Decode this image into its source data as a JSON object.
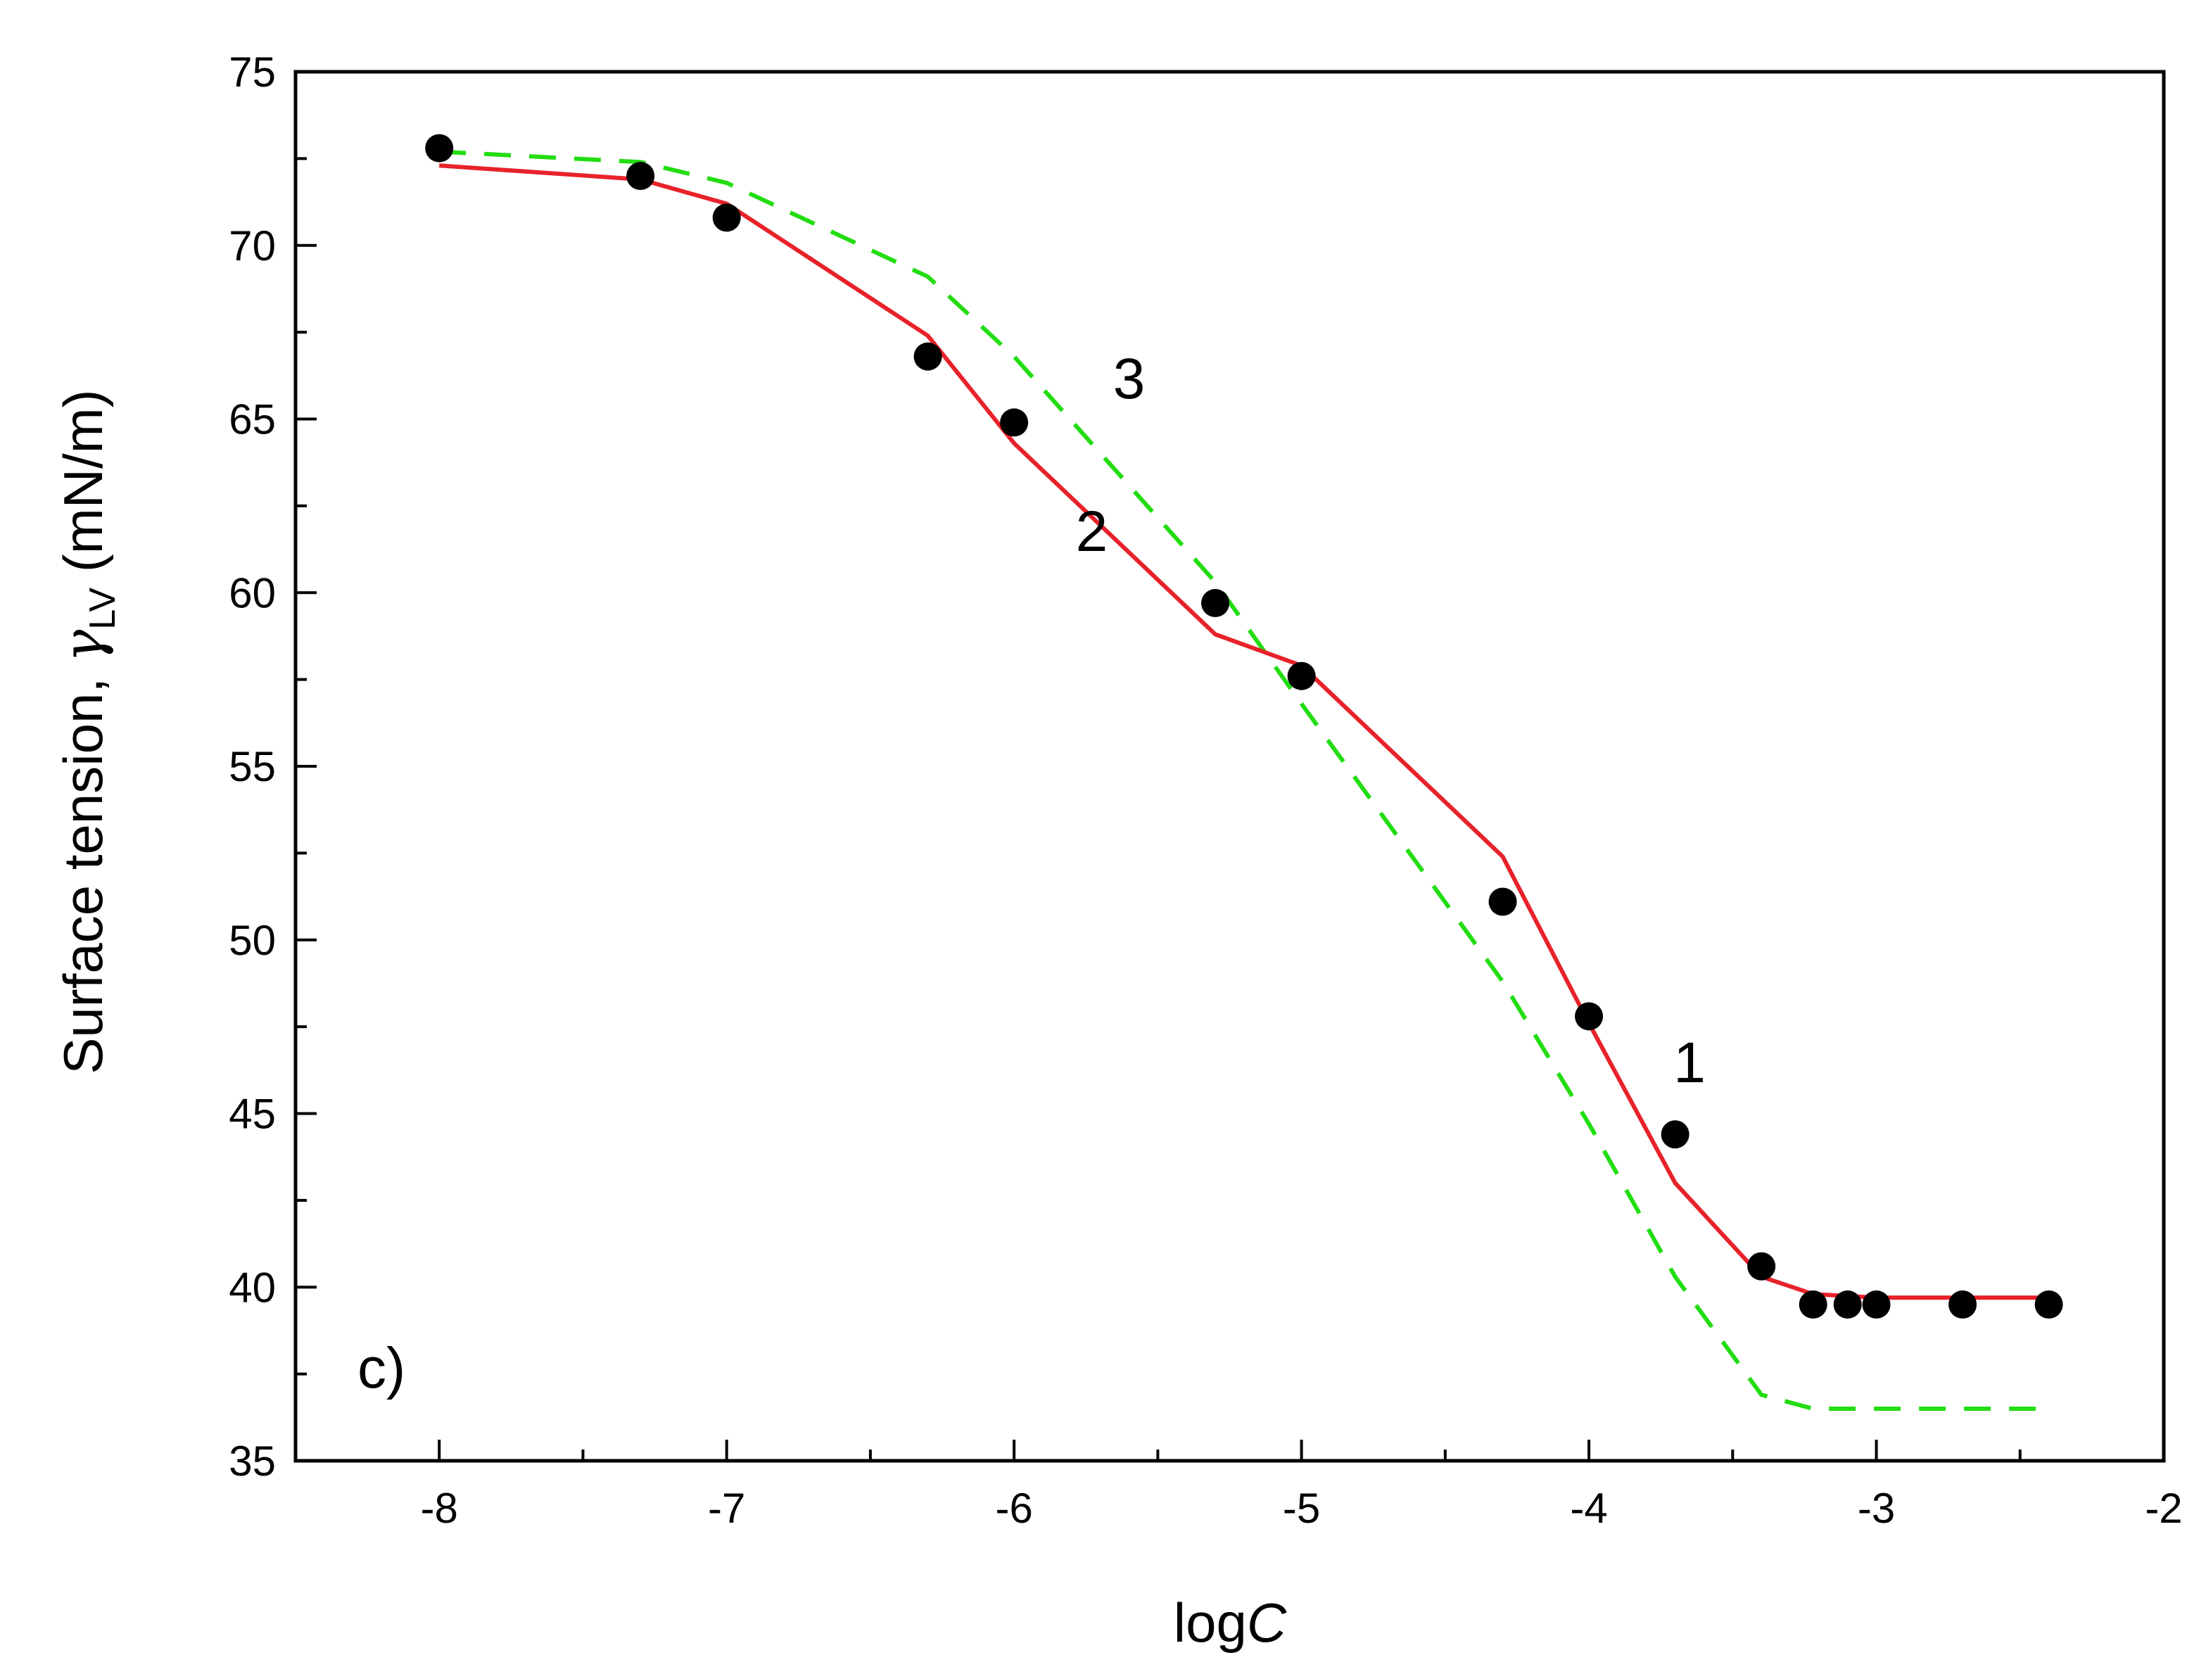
{
  "chart_data": {
    "type": "line",
    "title": "",
    "xlabel_prefix": "log",
    "xlabel_var": "C",
    "ylabel_main": "Surface tension, ",
    "ylabel_symbol": "γ",
    "ylabel_sub": "LV",
    "ylabel_unit": " (mN/m)",
    "xlim": [
      -8.5,
      -2
    ],
    "ylim": [
      35,
      75
    ],
    "xticks": [
      -8,
      -7,
      -6,
      -5,
      -4,
      -3,
      -2
    ],
    "xtick_labels": [
      "-8",
      "-7",
      "-6",
      "-5",
      "-4",
      "-3",
      "-2"
    ],
    "yticks": [
      35,
      40,
      45,
      50,
      55,
      60,
      65,
      70,
      75
    ],
    "ytick_labels": [
      "35",
      "40",
      "45",
      "50",
      "55",
      "60",
      "65",
      "70",
      "75"
    ],
    "panel_label": "c)",
    "series": [
      {
        "name": "1",
        "style": "markers",
        "color": "#000000",
        "x": [
          -8.0,
          -7.3,
          -7.0,
          -6.3,
          -6.0,
          -5.3,
          -5.0,
          -4.3,
          -4.0,
          -3.7,
          -3.4,
          -3.22,
          -3.1,
          -3.0,
          -2.7,
          -2.4
        ],
        "y": [
          72.8,
          72.0,
          70.8,
          66.8,
          64.9,
          59.7,
          57.6,
          51.1,
          47.8,
          44.4,
          40.6,
          39.5,
          39.5,
          39.5,
          39.5,
          39.5
        ]
      },
      {
        "name": "2",
        "style": "solid",
        "color": "#e8222a",
        "x": [
          -8.0,
          -7.3,
          -7.0,
          -6.3,
          -6.0,
          -5.3,
          -5.0,
          -4.3,
          -4.0,
          -3.7,
          -3.4,
          -3.22,
          -3.0,
          -2.7,
          -2.4
        ],
        "y": [
          72.3,
          71.9,
          71.2,
          67.4,
          64.3,
          58.8,
          57.9,
          52.4,
          47.6,
          43.0,
          40.3,
          39.8,
          39.7,
          39.7,
          39.7
        ]
      },
      {
        "name": "3",
        "style": "dashed",
        "color": "#22dd11",
        "x": [
          -8.0,
          -7.3,
          -7.0,
          -6.3,
          -6.0,
          -5.3,
          -5.0,
          -4.3,
          -4.0,
          -3.7,
          -3.4,
          -3.22,
          -3.0,
          -2.7,
          -2.4
        ],
        "y": [
          72.7,
          72.4,
          71.8,
          69.1,
          66.8,
          60.3,
          56.8,
          48.8,
          44.7,
          40.3,
          36.9,
          36.5,
          36.5,
          36.5,
          36.5
        ]
      }
    ],
    "annotations": [
      {
        "text": "1",
        "x": -3.65,
        "y": 45.9
      },
      {
        "text": "2",
        "x": -5.73,
        "y": 61.2
      },
      {
        "text": "3",
        "x": -5.6,
        "y": 65.6
      }
    ]
  }
}
